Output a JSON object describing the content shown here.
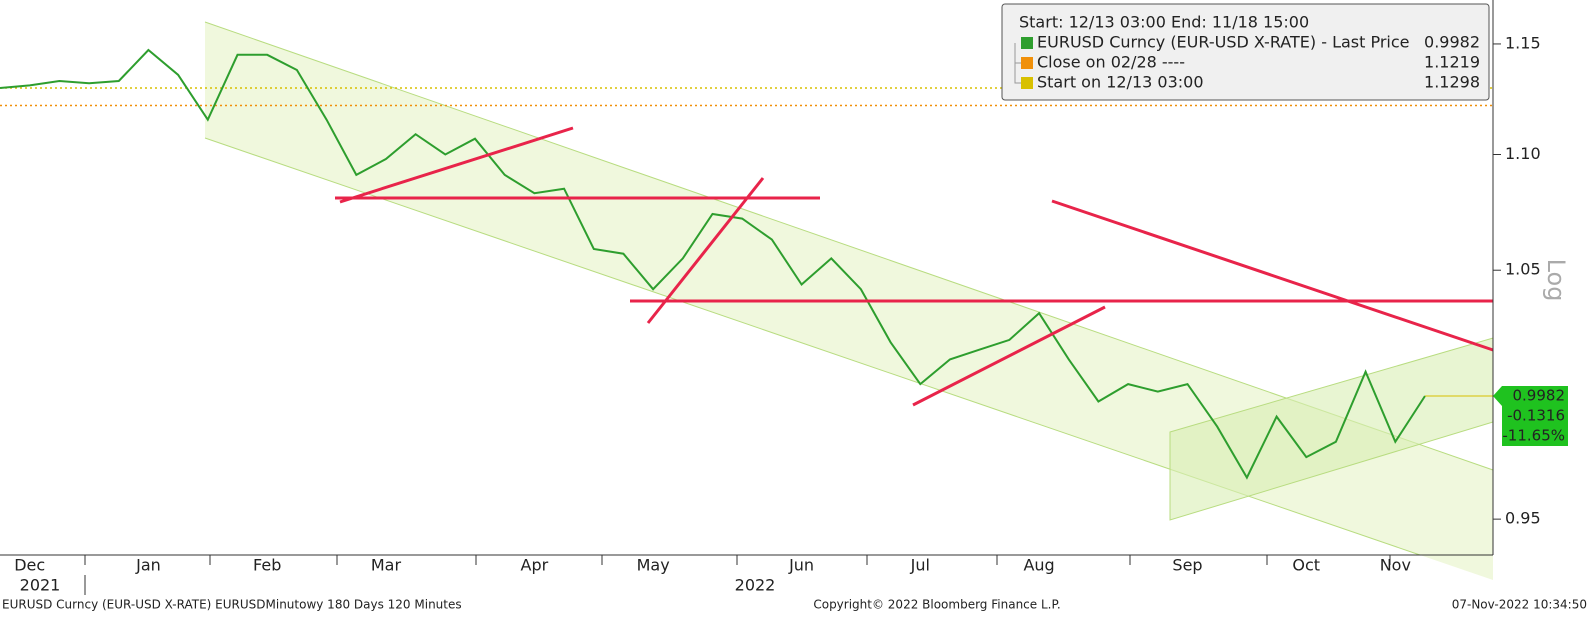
{
  "chart_data": {
    "type": "line",
    "log_scale": true,
    "legend_header": "Start: 12/13 03:00 End: 11/18 15:00",
    "categories": [
      null,
      "Dec",
      null,
      null,
      null,
      "Jan",
      null,
      null,
      null,
      "Feb",
      null,
      null,
      null,
      "Mar",
      null,
      null,
      null,
      null,
      "Apr",
      null,
      null,
      null,
      "May",
      null,
      null,
      null,
      null,
      "Jun",
      null,
      null,
      null,
      "Jul",
      null,
      null,
      null,
      "Aug",
      null,
      null,
      null,
      null,
      "Sep",
      null,
      null,
      null,
      "Oct",
      null,
      null,
      "Nov",
      null
    ],
    "years": [
      "2021",
      "2022"
    ],
    "series": [
      {
        "name": "EURUSD Curncy (EUR-USD X-RATE) - Last Price",
        "color": "#2e9e2e",
        "values": [
          1.1298,
          1.131,
          1.133,
          1.132,
          1.133,
          1.1472,
          1.1358,
          1.1155,
          1.145,
          1.145,
          1.138,
          1.1155,
          1.091,
          1.098,
          1.109,
          1.1,
          1.107,
          1.091,
          1.083,
          1.085,
          1.059,
          1.057,
          1.042,
          1.055,
          1.074,
          1.072,
          1.063,
          1.044,
          1.055,
          1.042,
          1.02,
          1.003,
          1.013,
          1.017,
          1.021,
          1.032,
          1.013,
          0.996,
          1.003,
          1.0,
          1.003,
          0.986,
          0.966,
          0.99,
          0.974,
          0.98,
          1.008,
          0.98,
          0.9982
        ]
      }
    ],
    "reference_lines": [
      {
        "name": "Close on 02/28 ----",
        "color": "#f0900a",
        "value": 1.1219
      },
      {
        "name": "Start on 12/13 03:00",
        "color": "#d8c000",
        "value": 1.1298
      }
    ],
    "last_tag": [
      "-0.1316",
      "-11.65%"
    ],
    "y_axis_label": "Log",
    "ylim": [
      0.9364,
      1.1705
    ],
    "yticks": [
      1.15,
      {
        "value": 1.1,
        "label": "1.10"
      },
      1.05,
      0.95
    ],
    "footer": {
      "left": "EURUSD Curncy (EUR-USD X-RATE) EURUSDMinutowy 180 Days 120 Minutes",
      "center": "Copyright© 2022 Bloomberg Finance L.P.",
      "right": "07-Nov-2022 10:34:50"
    }
  }
}
